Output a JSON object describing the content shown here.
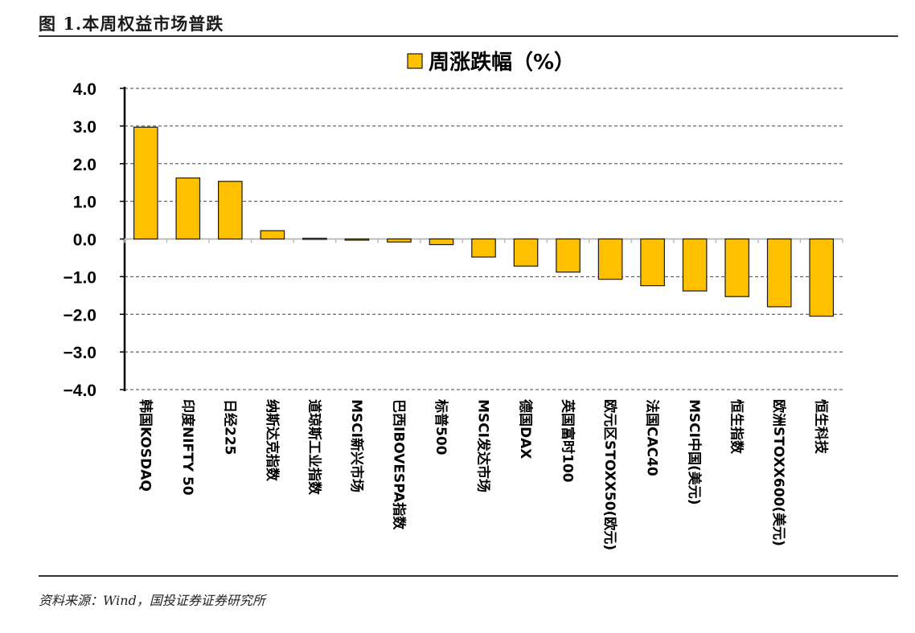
{
  "figure_title": "图 1.本周权益市场普跌",
  "source": "资料来源：Wind，国投证券证券研究所",
  "colors": {
    "bar": "#FFC000",
    "bar_stroke": "#1a1a1a",
    "grid": "#444444"
  },
  "chart_data": {
    "type": "bar",
    "categories": [
      "韩国KOSDAQ",
      "印度NIFTY 50",
      "日经225",
      "纳斯达克指数",
      "道琼斯工业指数",
      "MSCI新兴市场",
      "巴西IBOVESPA指数",
      "标普500",
      "MSCI发达市场",
      "德国DAX",
      "英国富时100",
      "欧元区STOXX50(欧元)",
      "法国CAC40",
      "MSCI中国(美元)",
      "恒生指数",
      "欧洲STOXX600(美元)",
      "恒生科技"
    ],
    "series": [
      {
        "name": "周涨跌幅（%）",
        "values": [
          2.97,
          1.62,
          1.53,
          0.22,
          0.02,
          -0.03,
          -0.08,
          -0.15,
          -0.48,
          -0.72,
          -0.88,
          -1.07,
          -1.24,
          -1.38,
          -1.53,
          -1.8,
          -2.05
        ]
      }
    ],
    "xlabel": "",
    "ylabel": "",
    "ylim": [
      -4.0,
      4.0
    ],
    "yticks": [
      "4.0",
      "3.0",
      "2.0",
      "1.0",
      "0.0",
      "−1.0",
      "−2.0",
      "−3.0",
      "−4.0"
    ],
    "grid": true,
    "legend": "top"
  }
}
